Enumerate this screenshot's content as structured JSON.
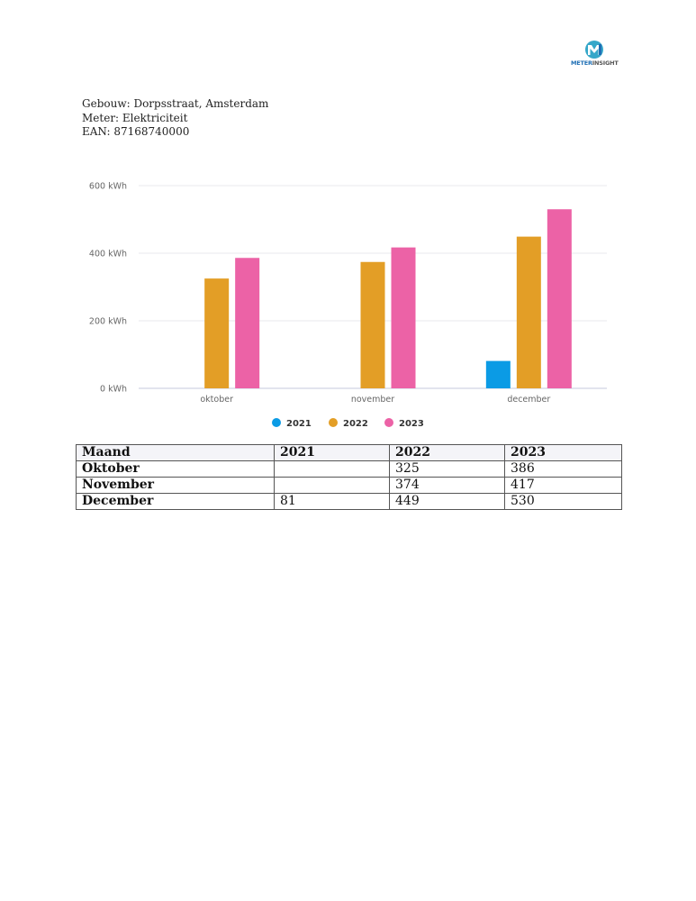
{
  "logo": {
    "part1": "METER",
    "part2": "INSIGHT",
    "mark": "MI",
    "colors": {
      "blue": "#1f6fb5",
      "teal": "#35a7c9"
    }
  },
  "info": {
    "building": "Gebouw: Dorpsstraat, Amsterdam",
    "meter": "Meter: Elektriciteit",
    "ean": "EAN: 87168740000"
  },
  "chart_data": {
    "type": "bar",
    "categories": [
      "oktober",
      "november",
      "december"
    ],
    "series": [
      {
        "name": "2021",
        "color": "#0b9be5",
        "values": [
          null,
          null,
          81
        ]
      },
      {
        "name": "2022",
        "color": "#e39e26",
        "values": [
          325,
          374,
          449
        ]
      },
      {
        "name": "2023",
        "color": "#ec62a6",
        "values": [
          386,
          417,
          530
        ]
      }
    ],
    "y_ticks": [
      "0 kWh",
      "200 kWh",
      "400 kWh",
      "600 kWh"
    ],
    "ylim": [
      0,
      600
    ],
    "grid": true,
    "legend": "bottom-center"
  },
  "table": {
    "headers": [
      "Maand",
      "2021",
      "2022",
      "2023"
    ],
    "rows": [
      [
        "Oktober",
        "",
        "325",
        "386"
      ],
      [
        "November",
        "",
        "374",
        "417"
      ],
      [
        "December",
        "81",
        "449",
        "530"
      ]
    ]
  }
}
